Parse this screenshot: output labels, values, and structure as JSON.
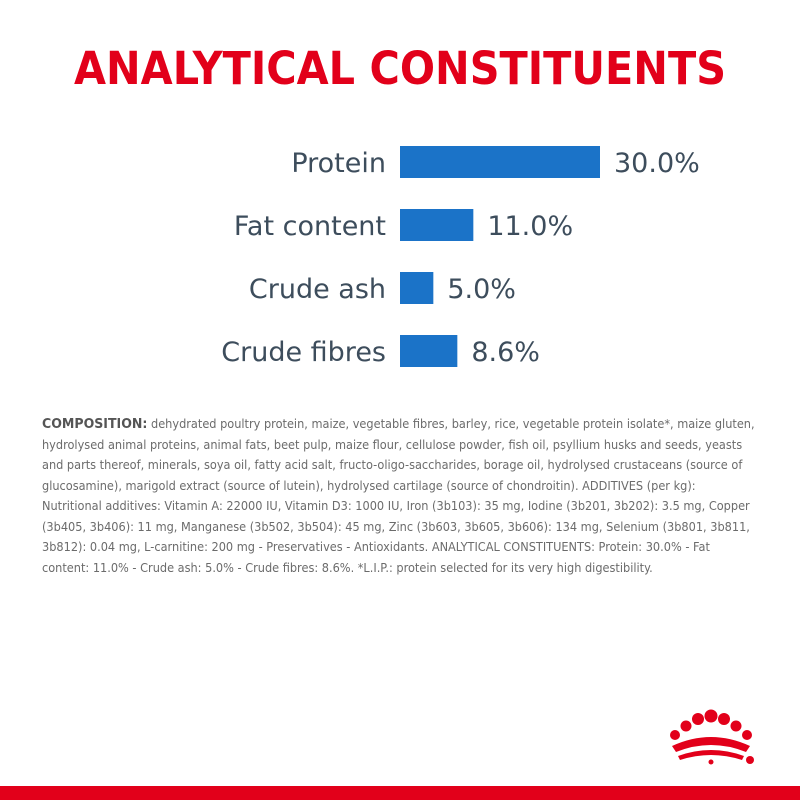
{
  "title": "ANALYTICAL CONSTITUENTS",
  "colors": {
    "title": "#e2001a",
    "bar": "#1b73c8",
    "label": "#3d4d5c",
    "text": "#6b6b6b",
    "brand_red": "#e2001a"
  },
  "chart_data": {
    "type": "bar",
    "orientation": "horizontal",
    "categories": [
      "Protein",
      "Fat content",
      "Crude ash",
      "Crude fibres"
    ],
    "values": [
      30.0,
      11.0,
      5.0,
      8.6
    ],
    "value_labels": [
      "30.0%",
      "11.0%",
      "5.0%",
      "8.6%"
    ],
    "title": "ANALYTICAL CONSTITUENTS",
    "xlabel": "",
    "ylabel": "",
    "xlim": [
      0,
      30
    ],
    "grid": false,
    "legend": "none"
  },
  "composition": {
    "label": "COMPOSITION:",
    "text": " dehydrated poultry protein, maize, vegetable fibres, barley, rice, vegetable protein isolate*, maize gluten, hydrolysed animal proteins, animal fats, beet pulp, maize flour, cellulose powder, fish oil, psyllium husks and seeds, yeasts and parts thereof, minerals, soya oil, fatty acid salt, fructo-oligo-saccharides, borage oil, hydrolysed crustaceans (source of glucosamine), marigold extract (source of lutein), hydrolysed cartilage (source of chondroitin). ADDITIVES (per kg): Nutritional additives: Vitamin A: 22000 IU, Vitamin D3: 1000 IU, Iron (3b103): 35 mg, Iodine (3b201, 3b202): 3.5 mg, Copper (3b405, 3b406): 11 mg, Manganese (3b502, 3b504): 45 mg, Zinc (3b603, 3b605, 3b606): 134 mg, Selenium (3b801, 3b811, 3b812): 0.04 mg, L-carnitine: 200 mg - Preservatives - Antioxidants. ANALYTICAL CONSTITUENTS: Protein: 30.0% - Fat content: 11.0% - Crude ash: 5.0% - Crude fibres: 8.6%. *L.I.P.: protein selected for its very high digestibility."
  },
  "logo": {
    "icon": "crown-icon"
  }
}
